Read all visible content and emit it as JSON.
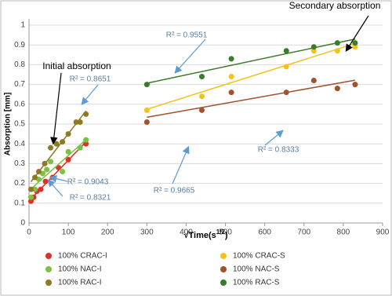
{
  "chart_data": {
    "type": "scatter",
    "ylabel": "Absorption [mm]",
    "xlabel_parts": [
      "√Time(s",
      "1/2",
      ")"
    ],
    "xlim": [
      0,
      900
    ],
    "ylim": [
      0,
      1
    ],
    "xticks": [
      0,
      100,
      200,
      300,
      400,
      500,
      600,
      700,
      800,
      900
    ],
    "yticks": [
      0,
      0.1,
      0.2,
      0.3,
      0.4,
      0.5,
      0.6,
      0.7,
      0.8,
      0.9,
      1
    ],
    "grid": true,
    "legend": "bottom",
    "trendline": "linear",
    "series": [
      {
        "name": "100% CRAC-I",
        "color": "#e0302a",
        "x": [
          5,
          12,
          20,
          30,
          42,
          60,
          75,
          100,
          145
        ],
        "values": [
          0.11,
          0.13,
          0.16,
          0.17,
          0.21,
          0.23,
          0.28,
          0.32,
          0.4
        ]
      },
      {
        "name": "100% NAC-I",
        "color": "#7cc142",
        "x": [
          5,
          15,
          25,
          35,
          45,
          55,
          85,
          100,
          130,
          145
        ],
        "values": [
          0.13,
          0.17,
          0.22,
          0.25,
          0.27,
          0.31,
          0.26,
          0.36,
          0.38,
          0.42
        ]
      },
      {
        "name": "100% RAC-I",
        "color": "#8f7a24",
        "x": [
          5,
          15,
          25,
          40,
          55,
          70,
          85,
          100,
          120,
          130,
          145
        ],
        "values": [
          0.17,
          0.23,
          0.26,
          0.3,
          0.38,
          0.4,
          0.41,
          0.45,
          0.51,
          0.51,
          0.55
        ]
      },
      {
        "name": "100% CRAC-S",
        "color": "#f5c21b",
        "x": [
          300,
          440,
          515,
          655,
          725,
          785,
          830
        ],
        "values": [
          0.57,
          0.64,
          0.74,
          0.79,
          0.87,
          0.87,
          0.89
        ]
      },
      {
        "name": "100% NAC-S",
        "color": "#a0522d",
        "x": [
          300,
          440,
          515,
          655,
          725,
          785,
          830
        ],
        "values": [
          0.51,
          0.57,
          0.66,
          0.66,
          0.72,
          0.68,
          0.7
        ]
      },
      {
        "name": "100% RAC-S",
        "color": "#3d7a2b",
        "x": [
          300,
          440,
          515,
          655,
          725,
          785,
          830
        ],
        "values": [
          0.7,
          0.74,
          0.83,
          0.87,
          0.89,
          0.91,
          0.91
        ]
      }
    ],
    "annotations": [
      "Secondary absorption",
      "Initial absorption",
      "R² = 0.9551",
      "R² = 0.8651",
      "R² = 0.9043",
      "R² = 0.8321",
      "R² = 0.9665",
      "R² = 0.8333"
    ]
  }
}
